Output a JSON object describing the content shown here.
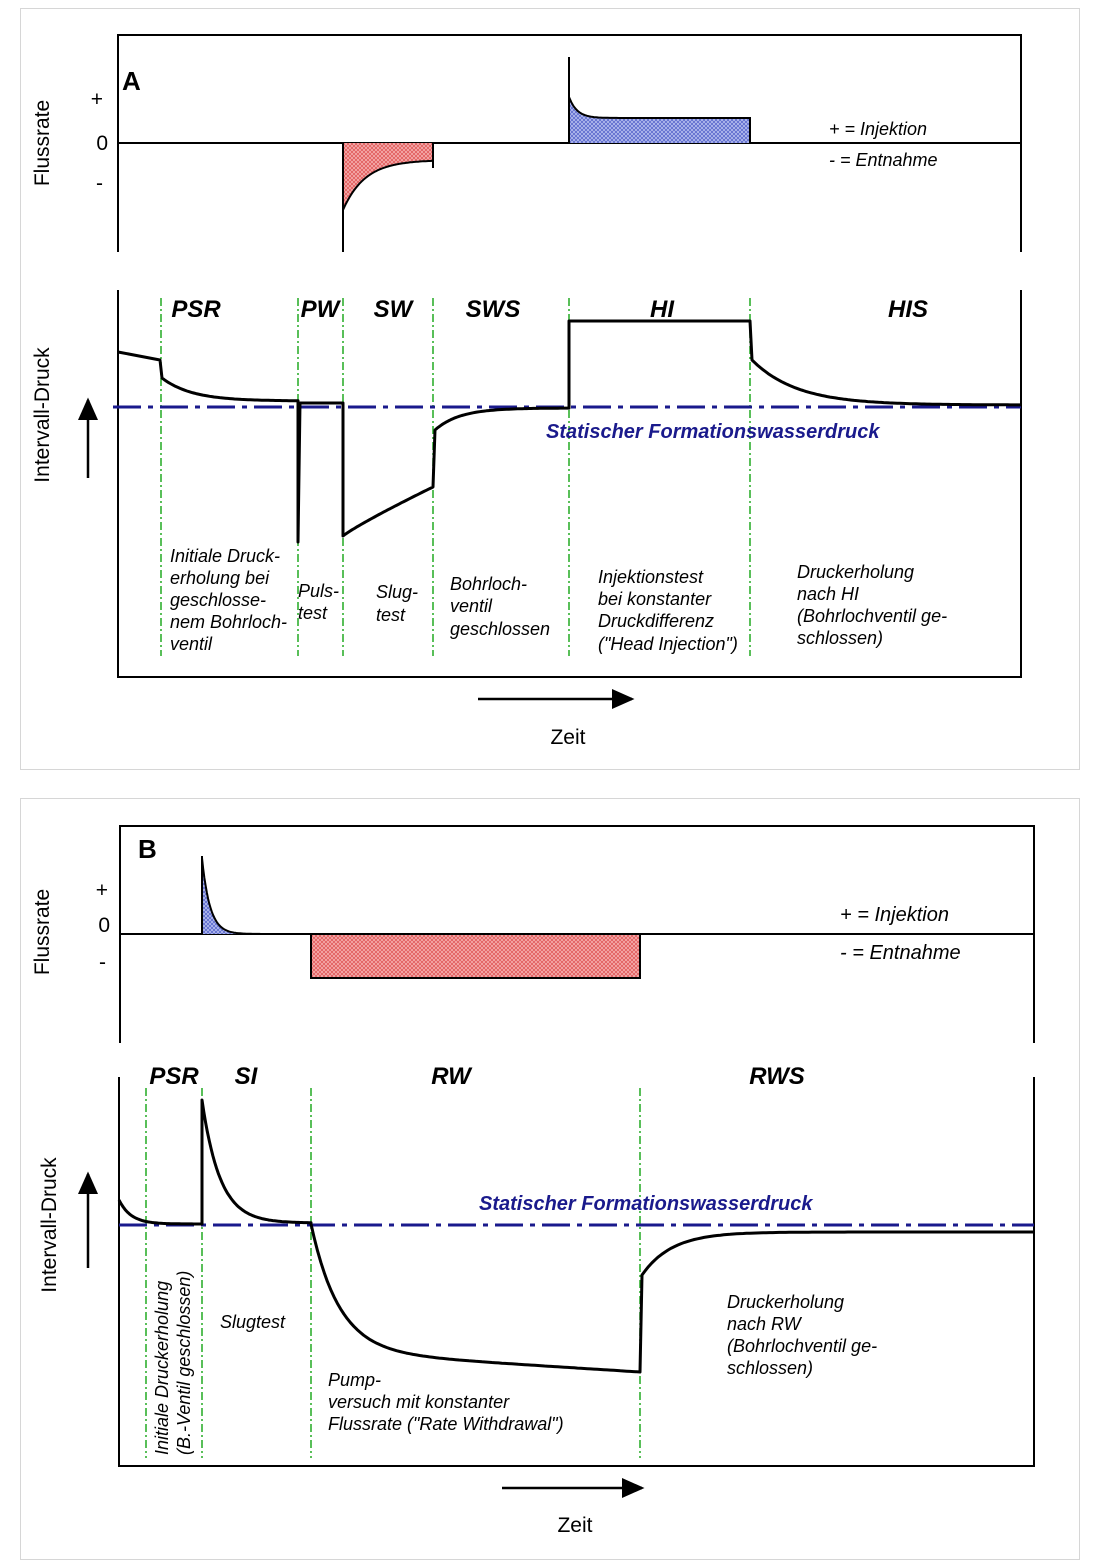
{
  "colors": {
    "curve": "#000000",
    "static_line": "#1a1a8c",
    "phase_line": "#22aa22",
    "injection_fill": "#8a96e0",
    "withdrawal_fill": "#f28a8a",
    "frame": "#000000"
  },
  "legend": {
    "injection": "+ = Injektion",
    "withdrawal": "- = Entnahme",
    "injection_b": "+  = Injektion",
    "withdrawal_b": "-  = Entnahme"
  },
  "axes": {
    "flow_label": "Flussrate",
    "pressure_label": "Intervall-Druck",
    "time_label": "Zeit",
    "tick_plus": "+",
    "tick_zero": "0",
    "tick_minus": "-"
  },
  "static_pressure_label": "Statischer Formationswasserdruck",
  "panelA": {
    "label": "A",
    "phases": [
      "PSR",
      "PW",
      "SW",
      "SWS",
      "HI",
      "HIS"
    ],
    "annotations": {
      "psr": [
        "Initiale Druck-",
        "erholung bei",
        "geschlosse-",
        "nem Bohrloch-",
        "ventil"
      ],
      "pw": [
        "Puls-",
        "test"
      ],
      "sw": [
        "Slug-",
        "test"
      ],
      "sws": [
        "Bohrloch-",
        "ventil",
        "geschlossen"
      ],
      "hi": [
        "Injektionstest",
        "bei konstanter",
        "Druckdifferenz",
        "(\"Head Injection\")"
      ],
      "his": [
        "Druckerholung",
        "nach HI",
        "(Bohrlochventil ge-",
        "schlossen)"
      ]
    }
  },
  "panelB": {
    "label": "B",
    "phases": [
      "PSR",
      "SI",
      "RW",
      "RWS"
    ],
    "annotations": {
      "psr": [
        "Initiale Druckerholung",
        "(B.-Ventil geschlossen)"
      ],
      "si": [
        "Slugtest"
      ],
      "rw": [
        "Pump-",
        "versuch mit konstanter",
        "Flussrate (\"Rate Withdrawal\")"
      ],
      "rws": [
        "Druckerholung",
        "nach RW",
        "(Bohrlochventil ge-",
        "schlossen)"
      ]
    }
  }
}
